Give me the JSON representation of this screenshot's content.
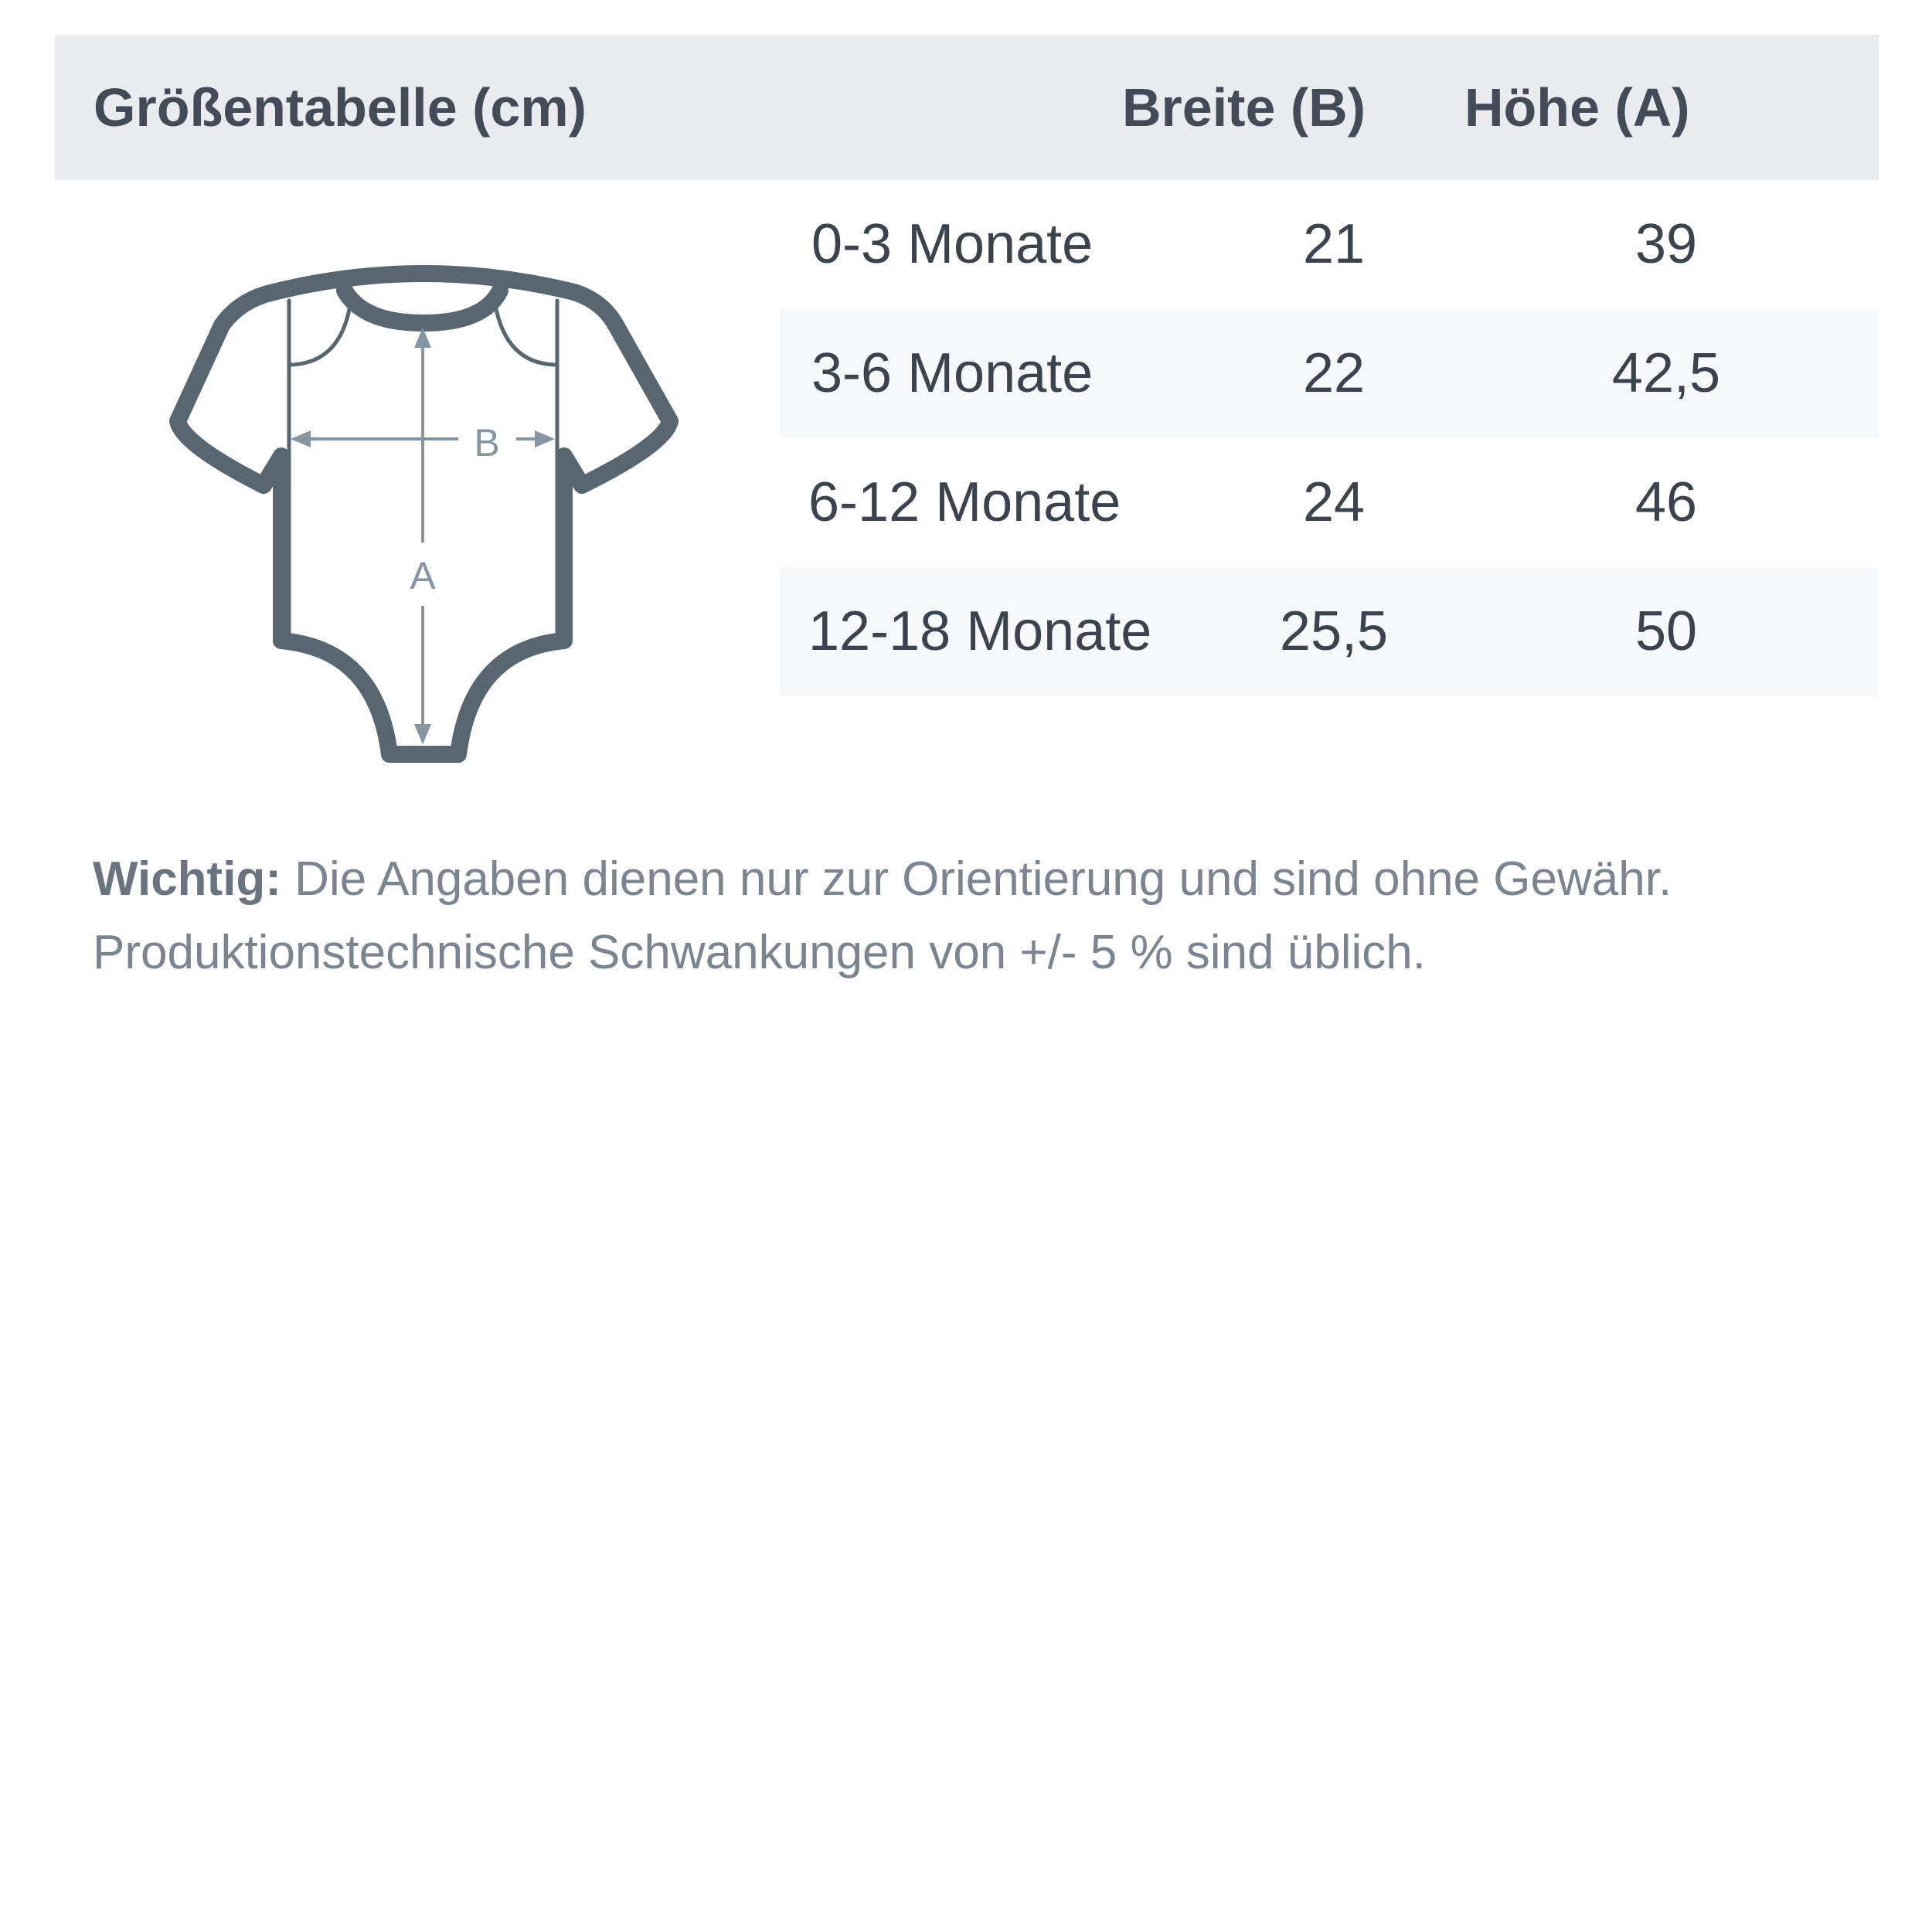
{
  "header": {
    "title": "Größentabelle (cm)",
    "col_width": "Breite (B)",
    "col_height": "Höhe (A)"
  },
  "rows": [
    {
      "size": "0-3 Monate",
      "width": "21",
      "height": "39"
    },
    {
      "size": "3-6 Monate",
      "width": "22",
      "height": "42,5"
    },
    {
      "size": "6-12 Monate",
      "width": "24",
      "height": "46"
    },
    {
      "size": "12-18 Monate",
      "width": "25,5",
      "height": "50"
    }
  ],
  "diagram": {
    "label_width": "B",
    "label_height": "A",
    "outline_color": "#58666f",
    "arrow_color": "#8795a0"
  },
  "note": {
    "bold": "Wichtig:",
    "text": " Die Angaben dienen nur zur Orientierung und sind ohne Gewähr.",
    "line2": "Produktionstechnische Schwankungen von +/- 5 % sind üblich."
  }
}
